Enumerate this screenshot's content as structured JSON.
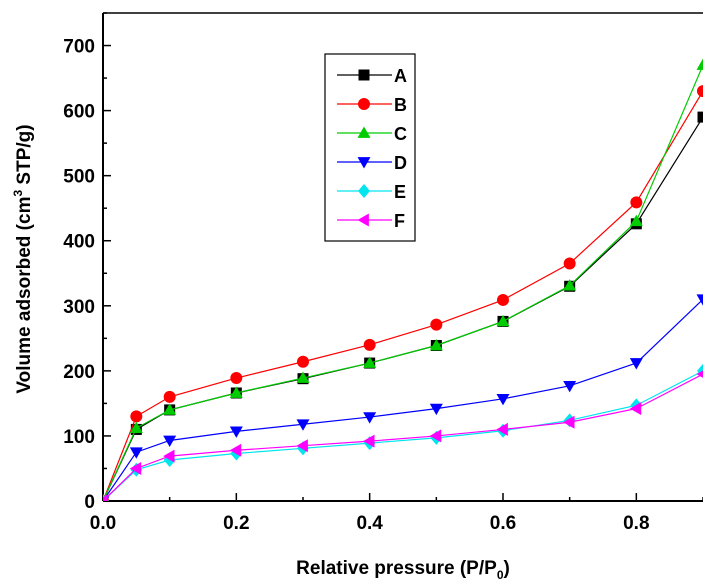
{
  "chart_data": {
    "type": "line",
    "xlabel": "Relative pressure (P/P",
    "xlabel_sub": "0",
    "xlabel_end": ")",
    "ylabel_pre": "Volume adsorbed (cm",
    "ylabel_sup": "3",
    "ylabel_post": " STP/g)",
    "xlim": [
      0.0,
      0.9
    ],
    "ylim": [
      0,
      750
    ],
    "xticks": [
      0.0,
      0.2,
      0.4,
      0.6,
      0.8
    ],
    "xtick_labels": [
      "0.0",
      "0.2",
      "0.4",
      "0.6",
      "0.8"
    ],
    "yticks": [
      0,
      100,
      200,
      300,
      400,
      500,
      600,
      700
    ],
    "ytick_labels": [
      "0",
      "100",
      "200",
      "300",
      "400",
      "500",
      "600",
      "700"
    ],
    "grid": false,
    "legend_position": "top-center",
    "x": [
      0.0,
      0.05,
      0.1,
      0.2,
      0.3,
      0.4,
      0.5,
      0.6,
      0.7,
      0.8,
      0.9
    ],
    "series": [
      {
        "name": "A",
        "color": "#000000",
        "marker": "square",
        "values": [
          0,
          110,
          140,
          166,
          188,
          212,
          239,
          276,
          330,
          426,
          590
        ]
      },
      {
        "name": "B",
        "color": "#ff0000",
        "marker": "circle",
        "values": [
          0,
          130,
          160,
          189,
          214,
          240,
          271,
          309,
          365,
          459,
          630
        ]
      },
      {
        "name": "C",
        "color": "#00cc00",
        "marker": "triangle-up",
        "values": [
          0,
          112,
          140,
          166,
          189,
          212,
          239,
          276,
          331,
          430,
          670
        ]
      },
      {
        "name": "D",
        "color": "#0000ff",
        "marker": "triangle-down",
        "values": [
          0,
          75,
          93,
          107,
          118,
          129,
          142,
          157,
          177,
          212,
          310
        ]
      },
      {
        "name": "E",
        "color": "#00e5ee",
        "marker": "diamond",
        "values": [
          0,
          48,
          63,
          73,
          81,
          89,
          97,
          108,
          124,
          147,
          200
        ]
      },
      {
        "name": "F",
        "color": "#ff00ff",
        "marker": "triangle-left",
        "values": [
          0,
          50,
          69,
          78,
          85,
          92,
          100,
          110,
          121,
          142,
          195
        ]
      }
    ]
  }
}
